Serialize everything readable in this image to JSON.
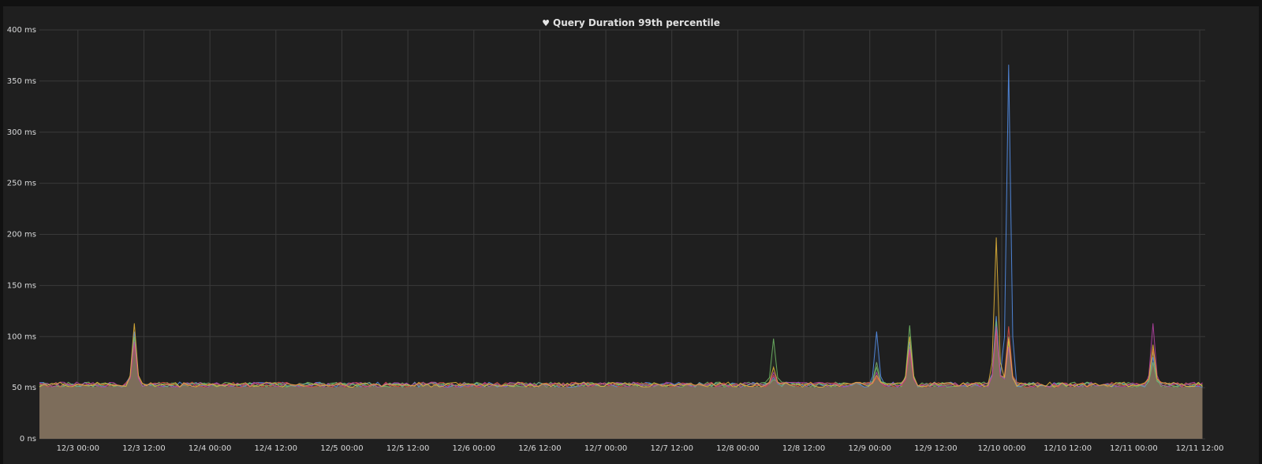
{
  "panel": {
    "title": "Query Duration 99th percentile",
    "title_icon": "heart-icon"
  },
  "chart_data": {
    "type": "area",
    "title": "Query Duration 99th percentile",
    "xlabel": "",
    "ylabel": "",
    "ylim": [
      0,
      400
    ],
    "y_unit": "ms",
    "y_ticks": [
      "0 ns",
      "50 ms",
      "100 ms",
      "150 ms",
      "200 ms",
      "250 ms",
      "300 ms",
      "350 ms",
      "400 ms"
    ],
    "y_tick_values": [
      0,
      50,
      100,
      150,
      200,
      250,
      300,
      350,
      400
    ],
    "xlim": [
      "12/2 17:00",
      "12/11 13:00"
    ],
    "x_ticks": [
      "12/3 00:00",
      "12/3 12:00",
      "12/4 00:00",
      "12/4 12:00",
      "12/5 00:00",
      "12/5 12:00",
      "12/6 00:00",
      "12/6 12:00",
      "12/7 00:00",
      "12/7 12:00",
      "12/8 00:00",
      "12/8 12:00",
      "12/9 00:00",
      "12/9 12:00",
      "12/10 00:00",
      "12/10 12:00",
      "12/11 00:00",
      "12/11 12:00"
    ],
    "grid": true,
    "baseline": 53,
    "spikes": [
      {
        "x": "12/3 10:30",
        "values": [
          105,
          95,
          100,
          92,
          95,
          113
        ]
      },
      {
        "x": "12/8 06:30",
        "values": [
          60,
          58,
          98,
          62,
          65,
          70
        ]
      },
      {
        "x": "12/9 01:30",
        "values": [
          105,
          75,
          70,
          60,
          65,
          62
        ]
      },
      {
        "x": "12/9 07:00",
        "values": [
          95,
          90,
          111,
          85,
          88,
          100
        ]
      },
      {
        "x": "12/9 23:00",
        "values": [
          120,
          110,
          115,
          105,
          110,
          197
        ]
      },
      {
        "x": "12/10 01:30",
        "values": [
          366,
          100,
          95,
          110,
          90,
          98
        ]
      },
      {
        "x": "12/11 03:30",
        "values": [
          80,
          85,
          75,
          88,
          113,
          92
        ]
      }
    ],
    "series": [
      {
        "color": "#5794f2"
      },
      {
        "color": "#7eb26d"
      },
      {
        "color": "#73bf69"
      },
      {
        "color": "#e24d42"
      },
      {
        "color": "#ba43a9"
      },
      {
        "color": "#eab839"
      }
    ],
    "fill_color": "#6e6353"
  }
}
